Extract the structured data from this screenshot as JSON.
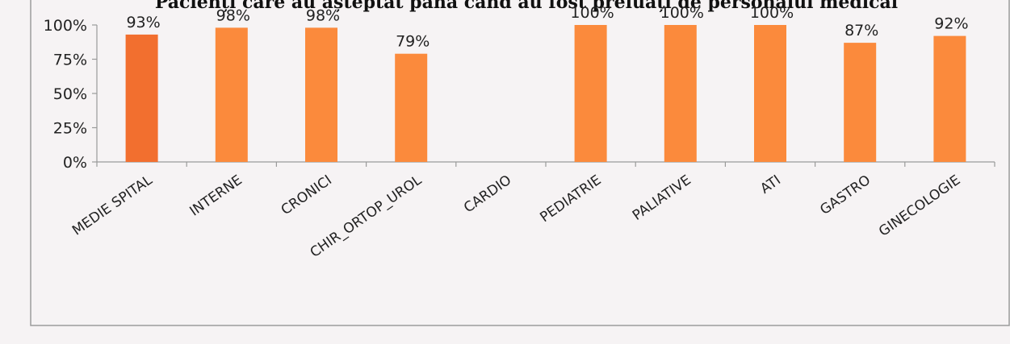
{
  "chart_data": {
    "type": "bar",
    "title": "Pacienți care au așteptat până când au fost preluați de personalul medical",
    "categories": [
      "MEDIE SPITAL",
      "INTERNE",
      "CRONICI",
      "CHIR_ORTOP_UROL",
      "CARDIO",
      "PEDIATRIE",
      "PALIATIVE",
      "ATI",
      "GASTRO",
      "GINECOLOGIE"
    ],
    "values": [
      93,
      98,
      98,
      79,
      null,
      100,
      100,
      100,
      87,
      92
    ],
    "data_labels": [
      "93%",
      "98%",
      "98%",
      "79%",
      "",
      "100%",
      "100%",
      "100%",
      "87%",
      "92%"
    ],
    "yticks": [
      "0%",
      "25%",
      "50%",
      "75%",
      "100%"
    ],
    "ylim": [
      0,
      100
    ],
    "grid": false,
    "legend": "none",
    "colors": {
      "average_bar": "#f26f2f",
      "bar": "#fb8a3c",
      "axis": "#9a9a9a",
      "frame": "#9c9c9c"
    }
  }
}
